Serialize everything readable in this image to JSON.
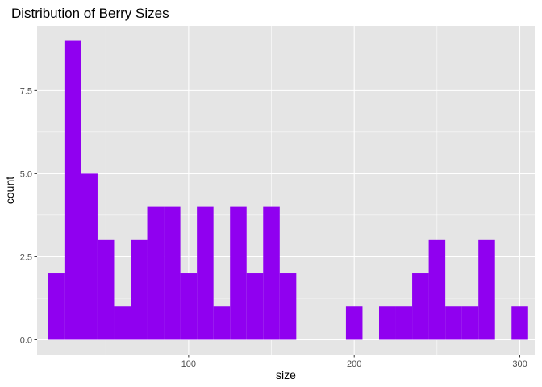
{
  "chart_data": {
    "type": "bar",
    "title": "Distribution of Berry Sizes",
    "xlabel": "size",
    "ylabel": "count",
    "bar_color": "#9000F0",
    "panel_background": "#E5E5E5",
    "grid_color": "#FFFFFF",
    "grid": true,
    "xlim": [
      8.5,
      309
    ],
    "ylim": [
      -0.45,
      9.45
    ],
    "x_ticks": [
      {
        "value": 100,
        "label": "100"
      },
      {
        "value": 200,
        "label": "200"
      },
      {
        "value": 300,
        "label": "300"
      }
    ],
    "y_ticks": [
      {
        "value": 0,
        "label": "0.0"
      },
      {
        "value": 2.5,
        "label": "2.5"
      },
      {
        "value": 5,
        "label": "5.0"
      },
      {
        "value": 7.5,
        "label": "7.5"
      }
    ],
    "bin_width": 10,
    "bins": [
      {
        "x0": 15,
        "x1": 25,
        "count": 2
      },
      {
        "x0": 25,
        "x1": 35,
        "count": 9
      },
      {
        "x0": 35,
        "x1": 45,
        "count": 5
      },
      {
        "x0": 45,
        "x1": 55,
        "count": 3
      },
      {
        "x0": 55,
        "x1": 65,
        "count": 1
      },
      {
        "x0": 65,
        "x1": 75,
        "count": 3
      },
      {
        "x0": 75,
        "x1": 85,
        "count": 4
      },
      {
        "x0": 85,
        "x1": 95,
        "count": 4
      },
      {
        "x0": 95,
        "x1": 105,
        "count": 2
      },
      {
        "x0": 105,
        "x1": 115,
        "count": 4
      },
      {
        "x0": 115,
        "x1": 125,
        "count": 1
      },
      {
        "x0": 125,
        "x1": 135,
        "count": 4
      },
      {
        "x0": 135,
        "x1": 145,
        "count": 2
      },
      {
        "x0": 145,
        "x1": 155,
        "count": 4
      },
      {
        "x0": 155,
        "x1": 165,
        "count": 2
      },
      {
        "x0": 165,
        "x1": 175,
        "count": 0
      },
      {
        "x0": 175,
        "x1": 185,
        "count": 0
      },
      {
        "x0": 185,
        "x1": 195,
        "count": 0
      },
      {
        "x0": 195,
        "x1": 205,
        "count": 1
      },
      {
        "x0": 205,
        "x1": 215,
        "count": 0
      },
      {
        "x0": 215,
        "x1": 225,
        "count": 1
      },
      {
        "x0": 225,
        "x1": 235,
        "count": 1
      },
      {
        "x0": 235,
        "x1": 245,
        "count": 2
      },
      {
        "x0": 245,
        "x1": 255,
        "count": 3
      },
      {
        "x0": 255,
        "x1": 265,
        "count": 1
      },
      {
        "x0": 265,
        "x1": 275,
        "count": 1
      },
      {
        "x0": 275,
        "x1": 285,
        "count": 3
      },
      {
        "x0": 285,
        "x1": 295,
        "count": 0
      },
      {
        "x0": 295,
        "x1": 305,
        "count": 1
      }
    ]
  }
}
